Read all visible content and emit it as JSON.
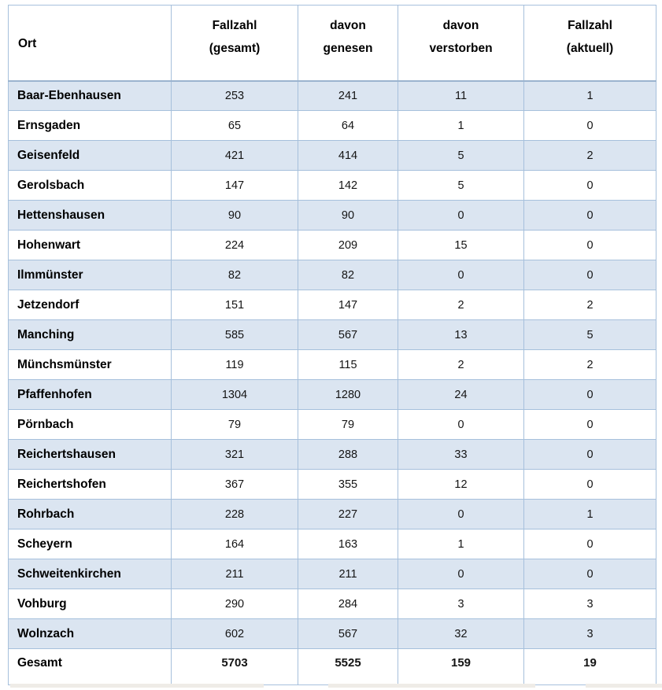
{
  "table": {
    "headers": [
      {
        "label": "Ort",
        "lines": [
          "Ort"
        ]
      },
      {
        "label": "Fallzahl (gesamt)",
        "lines": [
          "Fallzahl",
          "(gesamt)"
        ]
      },
      {
        "label": "davon genesen",
        "lines": [
          "davon",
          "genesen"
        ]
      },
      {
        "label": "davon verstorben",
        "lines": [
          "davon",
          "verstorben"
        ]
      },
      {
        "label": "Fallzahl (aktuell)",
        "lines": [
          "Fallzahl",
          "(aktuell)"
        ]
      }
    ],
    "rows": [
      {
        "ort": "Baar-Ebenhausen",
        "fallzahl_gesamt": "253",
        "davon_genesen": "241",
        "davon_verstorben": "11",
        "fallzahl_aktuell": "1"
      },
      {
        "ort": "Ernsgaden",
        "fallzahl_gesamt": "65",
        "davon_genesen": "64",
        "davon_verstorben": "1",
        "fallzahl_aktuell": "0"
      },
      {
        "ort": "Geisenfeld",
        "fallzahl_gesamt": "421",
        "davon_genesen": "414",
        "davon_verstorben": "5",
        "fallzahl_aktuell": "2"
      },
      {
        "ort": "Gerolsbach",
        "fallzahl_gesamt": "147",
        "davon_genesen": "142",
        "davon_verstorben": "5",
        "fallzahl_aktuell": "0"
      },
      {
        "ort": "Hettenshausen",
        "fallzahl_gesamt": "90",
        "davon_genesen": "90",
        "davon_verstorben": "0",
        "fallzahl_aktuell": "0"
      },
      {
        "ort": "Hohenwart",
        "fallzahl_gesamt": "224",
        "davon_genesen": "209",
        "davon_verstorben": "15",
        "fallzahl_aktuell": "0"
      },
      {
        "ort": "Ilmmünster",
        "fallzahl_gesamt": "82",
        "davon_genesen": "82",
        "davon_verstorben": "0",
        "fallzahl_aktuell": "0"
      },
      {
        "ort": "Jetzendorf",
        "fallzahl_gesamt": "151",
        "davon_genesen": "147",
        "davon_verstorben": "2",
        "fallzahl_aktuell": "2"
      },
      {
        "ort": "Manching",
        "fallzahl_gesamt": "585",
        "davon_genesen": "567",
        "davon_verstorben": "13",
        "fallzahl_aktuell": "5"
      },
      {
        "ort": "Münchsmünster",
        "fallzahl_gesamt": "119",
        "davon_genesen": "115",
        "davon_verstorben": "2",
        "fallzahl_aktuell": "2"
      },
      {
        "ort": "Pfaffenhofen",
        "fallzahl_gesamt": "1304",
        "davon_genesen": "1280",
        "davon_verstorben": "24",
        "fallzahl_aktuell": "0"
      },
      {
        "ort": "Pörnbach",
        "fallzahl_gesamt": "79",
        "davon_genesen": "79",
        "davon_verstorben": "0",
        "fallzahl_aktuell": "0"
      },
      {
        "ort": "Reichertshausen",
        "fallzahl_gesamt": "321",
        "davon_genesen": "288",
        "davon_verstorben": "33",
        "fallzahl_aktuell": "0"
      },
      {
        "ort": "Reichertshofen",
        "fallzahl_gesamt": "367",
        "davon_genesen": "355",
        "davon_verstorben": "12",
        "fallzahl_aktuell": "0"
      },
      {
        "ort": "Rohrbach",
        "fallzahl_gesamt": "228",
        "davon_genesen": "227",
        "davon_verstorben": "0",
        "fallzahl_aktuell": "1"
      },
      {
        "ort": "Scheyern",
        "fallzahl_gesamt": "164",
        "davon_genesen": "163",
        "davon_verstorben": "1",
        "fallzahl_aktuell": "0"
      },
      {
        "ort": "Schweitenkirchen",
        "fallzahl_gesamt": "211",
        "davon_genesen": "211",
        "davon_verstorben": "0",
        "fallzahl_aktuell": "0"
      },
      {
        "ort": "Vohburg",
        "fallzahl_gesamt": "290",
        "davon_genesen": "284",
        "davon_verstorben": "3",
        "fallzahl_aktuell": "3"
      },
      {
        "ort": "Wolnzach",
        "fallzahl_gesamt": "602",
        "davon_genesen": "567",
        "davon_verstorben": "32",
        "fallzahl_aktuell": "3"
      }
    ],
    "total_row": {
      "ort": "Gesamt",
      "fallzahl_gesamt": "5703",
      "davon_genesen": "5525",
      "davon_verstorben": "159",
      "fallzahl_aktuell": "19"
    }
  },
  "chart_data": {
    "type": "table",
    "title": "",
    "columns": [
      "Ort",
      "Fallzahl (gesamt)",
      "davon genesen",
      "davon verstorben",
      "Fallzahl (aktuell)"
    ],
    "rows": [
      [
        "Baar-Ebenhausen",
        253,
        241,
        11,
        1
      ],
      [
        "Ernsgaden",
        65,
        64,
        1,
        0
      ],
      [
        "Geisenfeld",
        421,
        414,
        5,
        2
      ],
      [
        "Gerolsbach",
        147,
        142,
        5,
        0
      ],
      [
        "Hettenshausen",
        90,
        90,
        0,
        0
      ],
      [
        "Hohenwart",
        224,
        209,
        15,
        0
      ],
      [
        "Ilmmünster",
        82,
        82,
        0,
        0
      ],
      [
        "Jetzendorf",
        151,
        147,
        2,
        2
      ],
      [
        "Manching",
        585,
        567,
        13,
        5
      ],
      [
        "Münchsmünster",
        119,
        115,
        2,
        2
      ],
      [
        "Pfaffenhofen",
        1304,
        1280,
        24,
        0
      ],
      [
        "Pörnbach",
        79,
        79,
        0,
        0
      ],
      [
        "Reichertshausen",
        321,
        288,
        33,
        0
      ],
      [
        "Reichertshofen",
        367,
        355,
        12,
        0
      ],
      [
        "Rohrbach",
        228,
        227,
        0,
        1
      ],
      [
        "Scheyern",
        164,
        163,
        1,
        0
      ],
      [
        "Schweitenkirchen",
        211,
        211,
        0,
        0
      ],
      [
        "Vohburg",
        290,
        284,
        3,
        3
      ],
      [
        "Wolnzach",
        602,
        567,
        32,
        3
      ],
      [
        "Gesamt",
        5703,
        5525,
        159,
        19
      ]
    ],
    "layout_hints": {
      "banded_rows": true,
      "band_start": "first_data_row",
      "total_row_bold": true
    }
  },
  "colors": {
    "band": "#dbe5f1",
    "border": "#a6c0dc",
    "header_rule": "#9bb3cf",
    "text": "#141414"
  }
}
